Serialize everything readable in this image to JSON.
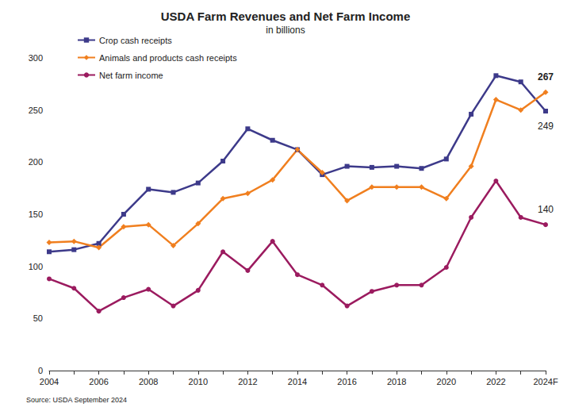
{
  "chart_data": {
    "type": "line",
    "title": "USDA Farm Revenues and Net Farm Income",
    "subtitle": "in billions",
    "source": "Source: USDA September 2024",
    "categories": [
      "2004",
      null,
      "2006",
      null,
      "2008",
      null,
      "2010",
      null,
      "2012",
      null,
      "2014",
      null,
      "2016",
      null,
      "2018",
      null,
      "2020",
      null,
      "2022",
      null,
      "2024F"
    ],
    "series": [
      {
        "name": "Crop cash receipts",
        "color": "#3d3a8a",
        "marker": "square",
        "values": [
          114,
          116,
          122,
          150,
          174,
          171,
          180,
          201,
          232,
          221,
          212,
          188,
          196,
          195,
          196,
          194,
          203,
          246,
          283,
          277,
          249
        ]
      },
      {
        "name": "Animals and products cash receipts",
        "color": "#f07f1f",
        "marker": "diamond",
        "values": [
          123,
          124,
          118,
          138,
          140,
          120,
          141,
          165,
          170,
          183,
          212,
          190,
          163,
          176,
          176,
          176,
          165,
          196,
          260,
          250,
          267
        ]
      },
      {
        "name": "Net farm income",
        "color": "#9b1b5f",
        "marker": "circle",
        "values": [
          88,
          79,
          57,
          70,
          78,
          62,
          77,
          114,
          96,
          124,
          92,
          82,
          62,
          76,
          82,
          82,
          99,
          147,
          182,
          147,
          140
        ]
      }
    ],
    "annotations": [
      {
        "series": "Animals and products cash receipts",
        "x": "2024F",
        "text": "267"
      },
      {
        "series": "Crop cash receipts",
        "x": "2024F",
        "text": "249"
      },
      {
        "series": "Net farm income",
        "x": "2024F",
        "text": "140"
      }
    ],
    "ylim": [
      0,
      300
    ],
    "yticks": [
      0,
      50,
      100,
      150,
      200,
      250,
      300
    ],
    "grid": false,
    "legend": "upper left"
  }
}
